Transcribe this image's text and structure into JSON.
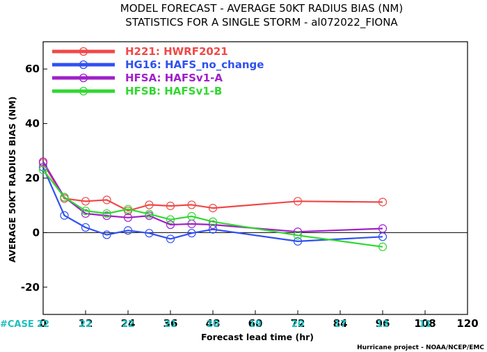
{
  "title_line1": "MODEL FORECAST - AVERAGE 50KT RADIUS BIAS (NM)",
  "title_line2": "STATISTICS FOR A SINGLE STORM - al072022_FIONA",
  "credit": "Hurricane project - NOAA/NCEP/EMC",
  "cases_label": "#CASE",
  "chart_data": {
    "type": "line",
    "title": "MODEL FORECAST - AVERAGE 50KT RADIUS BIAS (NM)",
    "subtitle": "STATISTICS FOR A SINGLE STORM - al072022_FIONA",
    "xlabel": "Forecast lead time (hr)",
    "ylabel": "AVERAGE 50KT RADIUS BIAS (NM)",
    "xlim": [
      0,
      120
    ],
    "ylim": [
      -30,
      70
    ],
    "x_ticks": [
      0,
      12,
      24,
      36,
      48,
      60,
      72,
      84,
      96,
      108,
      120
    ],
    "y_ticks": [
      -20,
      0,
      20,
      40,
      60
    ],
    "zero_line": true,
    "legend_position": "top-left",
    "case_counts": [
      {
        "x": 0,
        "n": 22
      },
      {
        "x": 12,
        "n": 22
      },
      {
        "x": 24,
        "n": 22
      },
      {
        "x": 36,
        "n": 21
      },
      {
        "x": 48,
        "n": 20
      },
      {
        "x": 60,
        "n": 19
      },
      {
        "x": 72,
        "n": 20
      },
      {
        "x": 84,
        "n": 17
      },
      {
        "x": 96,
        "n": 13
      },
      {
        "x": 108,
        "n": 11
      }
    ],
    "series": [
      {
        "name": "H221: HWRF2021",
        "color": "#f04848",
        "x": [
          0,
          6,
          12,
          18,
          24,
          30,
          36,
          42,
          48,
          72,
          96
        ],
        "values": [
          25.5,
          12.5,
          11.5,
          12,
          8,
          10.2,
          9.8,
          10.2,
          9,
          11.5,
          11.2
        ]
      },
      {
        "name": "HG16: HAFS_no_change",
        "color": "#3050f0",
        "x": [
          0,
          6,
          12,
          18,
          24,
          30,
          36,
          42,
          48,
          72,
          96
        ],
        "values": [
          24,
          6.3,
          1.9,
          -0.8,
          0.8,
          -0.2,
          -2.3,
          -0.2,
          1.2,
          -3.2,
          -1.5
        ]
      },
      {
        "name": "HFSA: HAFSv1-A",
        "color": "#a020c8",
        "x": [
          0,
          6,
          12,
          18,
          24,
          30,
          36,
          42,
          48,
          72,
          96
        ],
        "values": [
          26,
          13,
          7,
          6.2,
          5.5,
          6.2,
          2.9,
          3.2,
          2.9,
          0.3,
          1.5
        ]
      },
      {
        "name": "HFSB: HAFSv1-B",
        "color": "#30d830",
        "x": [
          0,
          6,
          12,
          18,
          24,
          30,
          36,
          42,
          48,
          72,
          96
        ],
        "values": [
          23,
          13,
          8,
          7,
          8.6,
          6.8,
          4.8,
          6,
          4,
          -1,
          -5.2
        ]
      }
    ]
  }
}
